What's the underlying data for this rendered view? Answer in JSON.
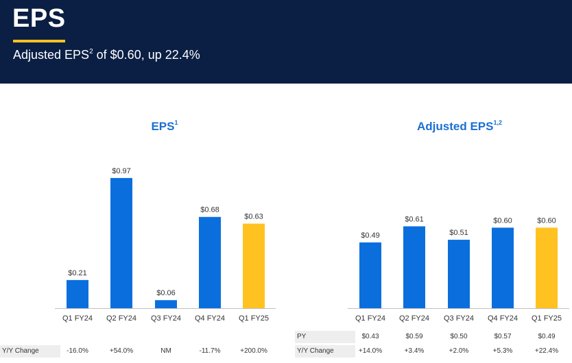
{
  "header": {
    "title": "EPS",
    "subtitle_prefix": "Adjusted EPS",
    "subtitle_sup": "2",
    "subtitle_suffix": " of $0.60, up 22.4%",
    "background": "#0b1f44",
    "accent": "#ffc220"
  },
  "colors": {
    "bar_blue": "#0a6fdd",
    "bar_highlight": "#ffc220",
    "title_blue": "#1a6fd3"
  },
  "chart_data": [
    {
      "type": "bar",
      "title": "EPS",
      "title_sup": "1",
      "categories": [
        "Q1 FY24",
        "Q2 FY24",
        "Q3 FY24",
        "Q4 FY24",
        "Q1 FY25"
      ],
      "values": [
        0.21,
        0.97,
        0.06,
        0.68,
        0.63
      ],
      "value_labels": [
        "$0.21",
        "$0.97",
        "$0.06",
        "$0.68",
        "$0.63"
      ],
      "highlight_index": 4,
      "ylim": [
        0,
        1.0
      ],
      "grid": false,
      "table": [
        {
          "label": "Y/Y Change",
          "cells": [
            "-16.0%",
            "+54.0%",
            "NM",
            "-11.7%",
            "+200.0%"
          ]
        }
      ]
    },
    {
      "type": "bar",
      "title": "Adjusted EPS",
      "title_sup": "1,2",
      "categories": [
        "Q1 FY24",
        "Q2 FY24",
        "Q3 FY24",
        "Q4 FY24",
        "Q1 FY25"
      ],
      "values": [
        0.49,
        0.61,
        0.51,
        0.6,
        0.6
      ],
      "value_labels": [
        "$0.49",
        "$0.61",
        "$0.51",
        "$0.60",
        "$0.60"
      ],
      "highlight_index": 4,
      "ylim": [
        0,
        1.0
      ],
      "grid": false,
      "table": [
        {
          "label": "PY",
          "cells": [
            "$0.43",
            "$0.59",
            "$0.50",
            "$0.57",
            "$0.49"
          ]
        },
        {
          "label": "Y/Y Change",
          "cells": [
            "+14.0%",
            "+3.4%",
            "+2.0%",
            "+5.3%",
            "+22.4%"
          ]
        }
      ]
    }
  ]
}
